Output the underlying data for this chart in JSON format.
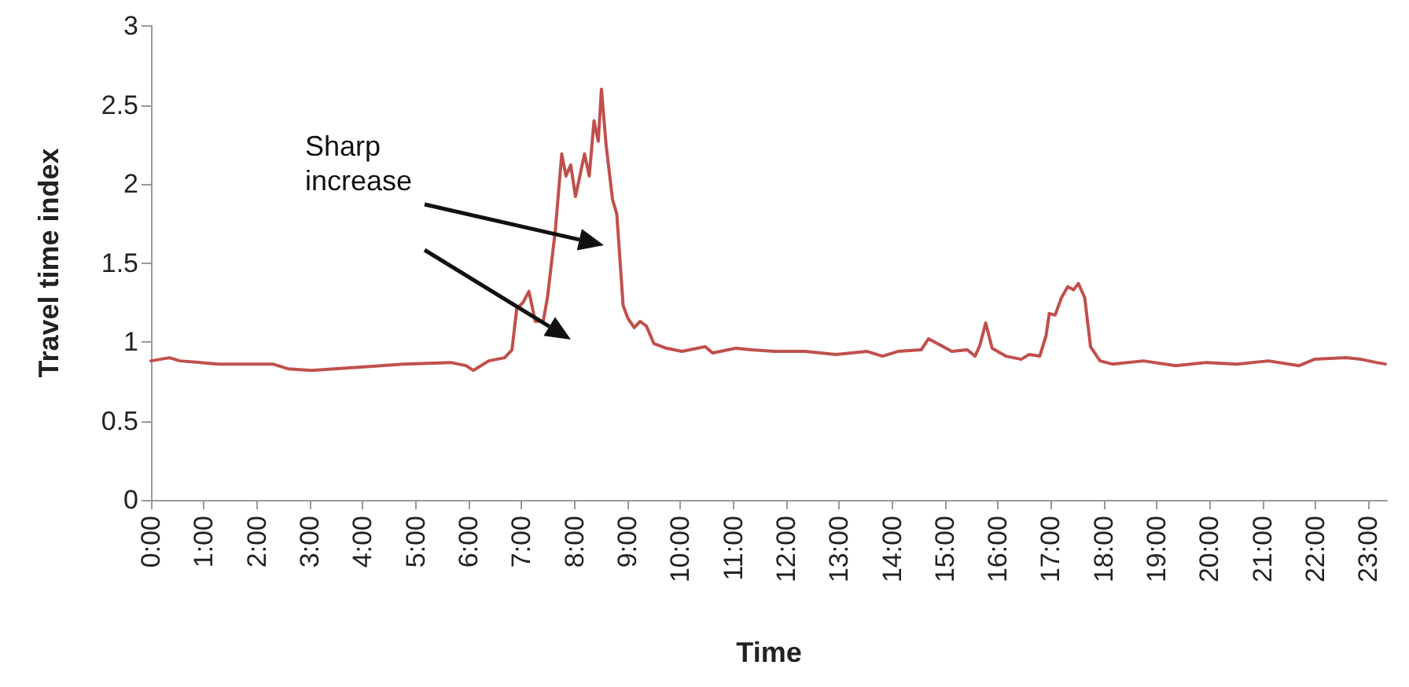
{
  "chart_data": {
    "type": "line",
    "xlabel": "Time",
    "ylabel": "Travel time index",
    "annotations": [
      "Sharp increase"
    ],
    "x": [
      0,
      0.35,
      0.55,
      1.28,
      2.3,
      2.59,
      3.03,
      3.91,
      4.78,
      5.66,
      5.95,
      6.09,
      6.38,
      6.68,
      6.82,
      6.91,
      7.03,
      7.14,
      7.26,
      7.41,
      7.49,
      7.64,
      7.76,
      7.84,
      7.93,
      8.02,
      8.19,
      8.28,
      8.37,
      8.45,
      8.51,
      8.6,
      8.72,
      8.8,
      8.92,
      9.01,
      9.13,
      9.24,
      9.36,
      9.5,
      9.74,
      10.03,
      10.47,
      10.61,
      11.05,
      11.34,
      11.78,
      12.36,
      12.94,
      13.53,
      13.82,
      14.11,
      14.55,
      14.69,
      15.13,
      15.42,
      15.57,
      15.66,
      15.77,
      15.89,
      16.15,
      16.44,
      16.59,
      16.79,
      16.91,
      16.97,
      17.08,
      17.2,
      17.32,
      17.43,
      17.52,
      17.64,
      17.75,
      17.93,
      18.16,
      18.75,
      19.36,
      19.94,
      20.52,
      21.11,
      21.69,
      21.98,
      22.57,
      22.86,
      23.15,
      23.32
    ],
    "series": [
      {
        "color": "#c0504d",
        "values": [
          0.88,
          0.9,
          0.88,
          0.86,
          0.86,
          0.83,
          0.82,
          0.84,
          0.86,
          0.87,
          0.85,
          0.82,
          0.88,
          0.9,
          0.95,
          1.21,
          1.25,
          1.32,
          1.13,
          1.13,
          1.28,
          1.71,
          2.19,
          2.05,
          2.12,
          1.92,
          2.19,
          2.05,
          2.4,
          2.27,
          2.6,
          2.24,
          1.9,
          1.81,
          1.23,
          1.15,
          1.09,
          1.13,
          1.1,
          0.99,
          0.96,
          0.94,
          0.97,
          0.93,
          0.96,
          0.95,
          0.94,
          0.94,
          0.92,
          0.94,
          0.91,
          0.94,
          0.95,
          1.02,
          0.94,
          0.95,
          0.91,
          0.98,
          1.12,
          0.96,
          0.91,
          0.89,
          0.92,
          0.91,
          1.04,
          1.18,
          1.17,
          1.28,
          1.35,
          1.33,
          1.37,
          1.28,
          0.97,
          0.88,
          0.86,
          0.88,
          0.85,
          0.87,
          0.86,
          0.88,
          0.85,
          0.89,
          0.9,
          0.89,
          0.87,
          0.86
        ]
      }
    ],
    "xlim": [
      0,
      23.35
    ],
    "xticks": [
      {
        "value": 0,
        "label": "0:00"
      },
      {
        "value": 1,
        "label": "1:00"
      },
      {
        "value": 2,
        "label": "2:00"
      },
      {
        "value": 3,
        "label": "3:00"
      },
      {
        "value": 4,
        "label": "4:00"
      },
      {
        "value": 5,
        "label": "5:00"
      },
      {
        "value": 6,
        "label": "6:00"
      },
      {
        "value": 7,
        "label": "7:00"
      },
      {
        "value": 8,
        "label": "8:00"
      },
      {
        "value": 9,
        "label": "9:00"
      },
      {
        "value": 10,
        "label": "10:00"
      },
      {
        "value": 11,
        "label": "11:00"
      },
      {
        "value": 12,
        "label": "12:00"
      },
      {
        "value": 13,
        "label": "13:00"
      },
      {
        "value": 14,
        "label": "14:00"
      },
      {
        "value": 15,
        "label": "15:00"
      },
      {
        "value": 16,
        "label": "16:00"
      },
      {
        "value": 17,
        "label": "17:00"
      },
      {
        "value": 18,
        "label": "18:00"
      },
      {
        "value": 19,
        "label": "19:00"
      },
      {
        "value": 20,
        "label": "20:00"
      },
      {
        "value": 21,
        "label": "21:00"
      },
      {
        "value": 22,
        "label": "22:00"
      },
      {
        "value": 23,
        "label": "23:00"
      }
    ],
    "ylim": [
      0,
      3
    ],
    "yticks": [
      0,
      0.5,
      1,
      1.5,
      2,
      2.5,
      3
    ],
    "grid": false,
    "marker": "none",
    "line_style": "solid"
  }
}
